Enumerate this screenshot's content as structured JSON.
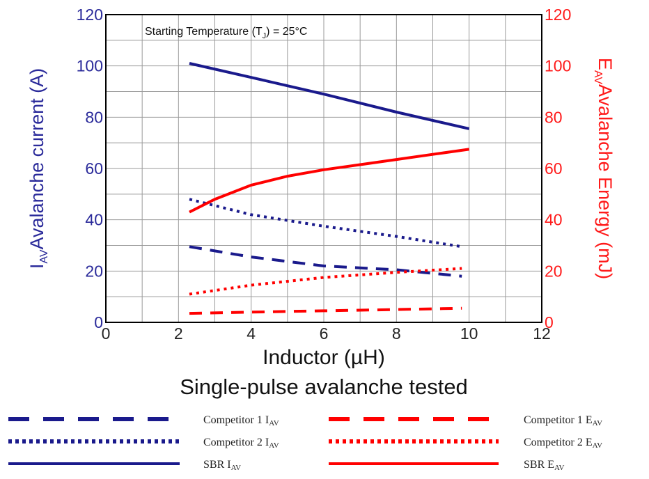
{
  "chart_data": {
    "type": "line",
    "annotation": {
      "prefix": "Starting Temperature (T",
      "sub": "J",
      "suffix": ") = 25°C"
    },
    "xlabel": "Inductor (µH)",
    "caption": "Single-pulse avalanche tested",
    "ylabel_left": {
      "main": "I",
      "sub": "AV",
      "rest": "Avalanche current (A)"
    },
    "ylabel_right": {
      "main": "E",
      "sub": "AV",
      "rest": "Avalanche Energy (mJ)"
    },
    "xlim": [
      0,
      12
    ],
    "ylim_left": [
      0,
      120
    ],
    "ylim_right": [
      0,
      120
    ],
    "x_ticks": [
      "0",
      "2",
      "4",
      "6",
      "8",
      "10",
      "12"
    ],
    "y_ticks_left": [
      "0",
      "20",
      "40",
      "60",
      "80",
      "100",
      "120"
    ],
    "y_ticks_right": [
      "0",
      "20",
      "40",
      "60",
      "80",
      "100",
      "120"
    ],
    "grid": true,
    "colors": {
      "blue": "#1a1a8c",
      "red": "#ff0000"
    },
    "series": [
      {
        "name": "SBR I",
        "name_sub": "AV",
        "axis": "left",
        "color": "#1a1a8c",
        "style": "solid",
        "x": [
          2.3,
          4,
          6,
          8,
          10
        ],
        "y": [
          101,
          95.5,
          89,
          82,
          75.5
        ]
      },
      {
        "name": "Competitor 2 I",
        "name_sub": "AV",
        "axis": "left",
        "color": "#1a1a8c",
        "style": "dotted",
        "x": [
          2.3,
          4,
          6,
          8,
          9.8
        ],
        "y": [
          48,
          42,
          37.5,
          33.5,
          29.5
        ]
      },
      {
        "name": "Competitor 1 I",
        "name_sub": "AV",
        "axis": "left",
        "color": "#1a1a8c",
        "style": "dashed",
        "x": [
          2.3,
          4,
          6,
          8,
          9.8
        ],
        "y": [
          29.5,
          25.5,
          22,
          20.5,
          18
        ]
      },
      {
        "name": "SBR E",
        "name_sub": "AV",
        "axis": "right",
        "color": "#ff0000",
        "style": "solid",
        "x": [
          2.3,
          3,
          4,
          5,
          6,
          7,
          8,
          9,
          10
        ],
        "y": [
          43,
          48,
          53.5,
          57,
          59.5,
          61.5,
          63.5,
          65.5,
          67.5
        ]
      },
      {
        "name": "Competitor 2 E",
        "name_sub": "AV",
        "axis": "right",
        "color": "#ff0000",
        "style": "dotted",
        "x": [
          2.3,
          4,
          6,
          8,
          9.8
        ],
        "y": [
          11,
          14.5,
          17.5,
          19.5,
          21
        ]
      },
      {
        "name": "Competitor 1 E",
        "name_sub": "AV",
        "axis": "right",
        "color": "#ff0000",
        "style": "dashed",
        "x": [
          2.3,
          4,
          6,
          8,
          9.8
        ],
        "y": [
          3.5,
          4,
          4.5,
          5,
          5.5
        ]
      }
    ],
    "legend": [
      {
        "label": "Competitor 1 I",
        "sub": "AV",
        "color": "#1a1a8c",
        "style": "dashed"
      },
      {
        "label": "Competitor 1 E",
        "sub": "AV",
        "color": "#ff0000",
        "style": "dashed"
      },
      {
        "label": "Competitor 2 I",
        "sub": "AV",
        "color": "#1a1a8c",
        "style": "dotted"
      },
      {
        "label": "Competitor 2 E",
        "sub": "AV",
        "color": "#ff0000",
        "style": "dotted"
      },
      {
        "label": "SBR I",
        "sub": "AV",
        "color": "#1a1a8c",
        "style": "solid"
      },
      {
        "label": "SBR E",
        "sub": "AV",
        "color": "#ff0000",
        "style": "solid"
      }
    ]
  }
}
